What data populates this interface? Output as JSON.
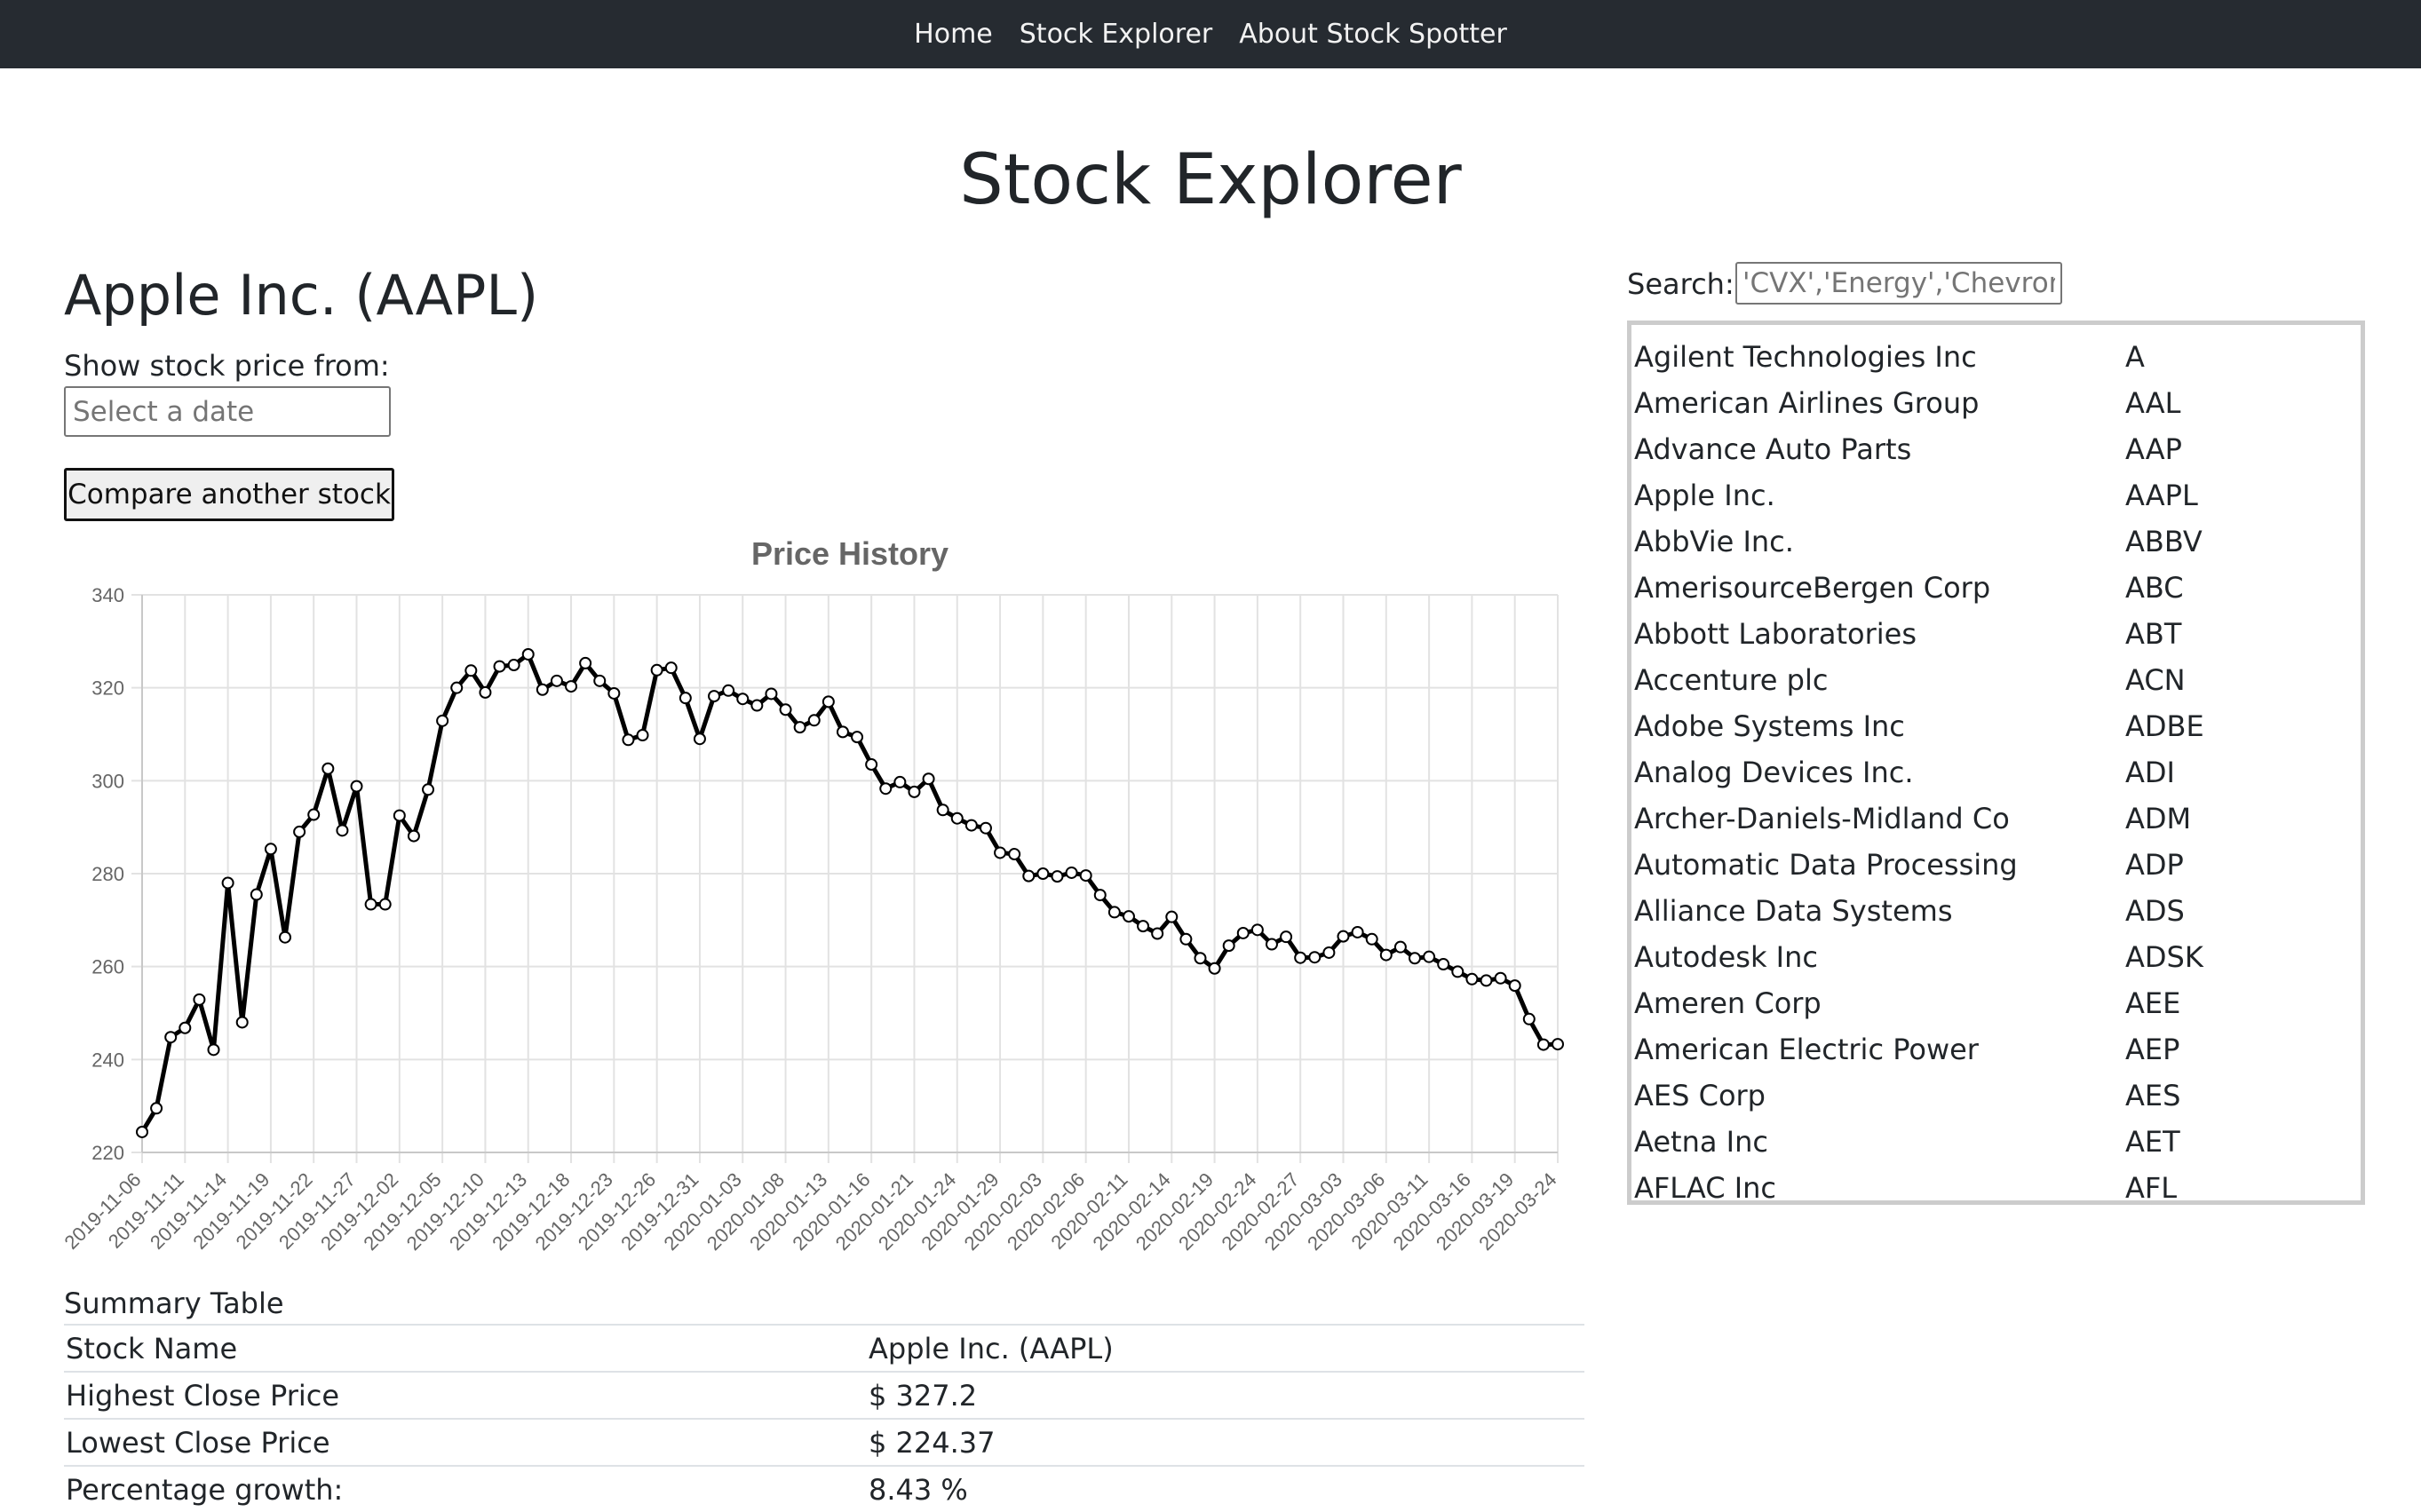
{
  "nav": {
    "items": [
      "Home",
      "Stock Explorer",
      "About Stock Spotter"
    ]
  },
  "page_title": "Stock Explorer",
  "stock_title": "Apple Inc. (AAPL)",
  "date_picker": {
    "label": "Show stock price from:",
    "placeholder": "Select a date"
  },
  "compare_button": "Compare another stock",
  "search": {
    "label": "Search:",
    "placeholder": "'CVX','Energy','Chevron'"
  },
  "stock_list": [
    {
      "name": "Agilent Technologies Inc",
      "ticker": "A"
    },
    {
      "name": "American Airlines Group",
      "ticker": "AAL"
    },
    {
      "name": "Advance Auto Parts",
      "ticker": "AAP"
    },
    {
      "name": "Apple Inc.",
      "ticker": "AAPL"
    },
    {
      "name": "AbbVie Inc.",
      "ticker": "ABBV"
    },
    {
      "name": "AmerisourceBergen Corp",
      "ticker": "ABC"
    },
    {
      "name": "Abbott Laboratories",
      "ticker": "ABT"
    },
    {
      "name": "Accenture plc",
      "ticker": "ACN"
    },
    {
      "name": "Adobe Systems Inc",
      "ticker": "ADBE"
    },
    {
      "name": "Analog Devices Inc.",
      "ticker": "ADI"
    },
    {
      "name": "Archer-Daniels-Midland Co",
      "ticker": "ADM"
    },
    {
      "name": "Automatic Data Processing",
      "ticker": "ADP"
    },
    {
      "name": "Alliance Data Systems",
      "ticker": "ADS"
    },
    {
      "name": "Autodesk Inc",
      "ticker": "ADSK"
    },
    {
      "name": "Ameren Corp",
      "ticker": "AEE"
    },
    {
      "name": "American Electric Power",
      "ticker": "AEP"
    },
    {
      "name": "AES Corp",
      "ticker": "AES"
    },
    {
      "name": "Aetna Inc",
      "ticker": "AET"
    },
    {
      "name": "AFLAC Inc",
      "ticker": "AFL"
    }
  ],
  "summary": {
    "caption": "Summary Table",
    "rows": [
      {
        "label": "Stock Name",
        "value": "Apple Inc. (AAPL)"
      },
      {
        "label": "Highest Close Price",
        "value": "$ 327.2"
      },
      {
        "label": "Lowest Close Price",
        "value": "$ 224.37"
      },
      {
        "label": "Percentage growth:",
        "value": "8.43 %"
      }
    ]
  },
  "chart_data": {
    "type": "line",
    "title": "Price History",
    "xlabel": "",
    "ylabel": "",
    "ylim": [
      220,
      340
    ],
    "yticks": [
      220,
      240,
      260,
      280,
      300,
      320,
      340
    ],
    "grid": true,
    "line_color": "#000000",
    "x_tick_labels": [
      "2019-11-06",
      "2019-11-11",
      "2019-11-14",
      "2019-11-19",
      "2019-11-22",
      "2019-11-27",
      "2019-12-02",
      "2019-12-05",
      "2019-12-10",
      "2019-12-13",
      "2019-12-18",
      "2019-12-23",
      "2019-12-26",
      "2019-12-31",
      "2020-01-03",
      "2020-01-08",
      "2020-01-13",
      "2020-01-16",
      "2020-01-21",
      "2020-01-24",
      "2020-01-29",
      "2020-02-03",
      "2020-02-06",
      "2020-02-11",
      "2020-02-14",
      "2020-02-19",
      "2020-02-24",
      "2020-02-27",
      "2020-03-03",
      "2020-03-06",
      "2020-03-11",
      "2020-03-16",
      "2020-03-19",
      "2020-03-24"
    ],
    "values": [
      224.4,
      229.5,
      244.8,
      246.8,
      252.9,
      242.1,
      278.0,
      248.0,
      275.5,
      285.3,
      266.3,
      289.0,
      292.7,
      302.6,
      289.3,
      298.8,
      273.4,
      273.4,
      292.5,
      288.1,
      298.1,
      312.9,
      320.0,
      323.7,
      319.0,
      324.6,
      324.9,
      327.2,
      319.6,
      321.5,
      320.3,
      325.3,
      321.5,
      318.8,
      308.8,
      309.8,
      323.8,
      324.3,
      317.8,
      309.0,
      318.2,
      319.4,
      317.6,
      316.2,
      318.7,
      315.3,
      311.5,
      313.0,
      317.0,
      310.5,
      309.4,
      303.5,
      298.3,
      299.7,
      297.6,
      300.4,
      293.7,
      291.9,
      290.4,
      289.8,
      284.5,
      284.2,
      279.5,
      280.0,
      279.4,
      280.2,
      279.6,
      275.4,
      271.7,
      270.8,
      268.7,
      267.1,
      270.7,
      265.9,
      261.8,
      259.6,
      264.5,
      267.2,
      267.9,
      264.8,
      266.4,
      261.9,
      262.0,
      263.0,
      266.5,
      267.4,
      265.9,
      262.5,
      264.2,
      261.8,
      262.1,
      260.5,
      258.9,
      257.3,
      257.0,
      257.5,
      255.9,
      248.7,
      243.2,
      243.3
    ]
  }
}
